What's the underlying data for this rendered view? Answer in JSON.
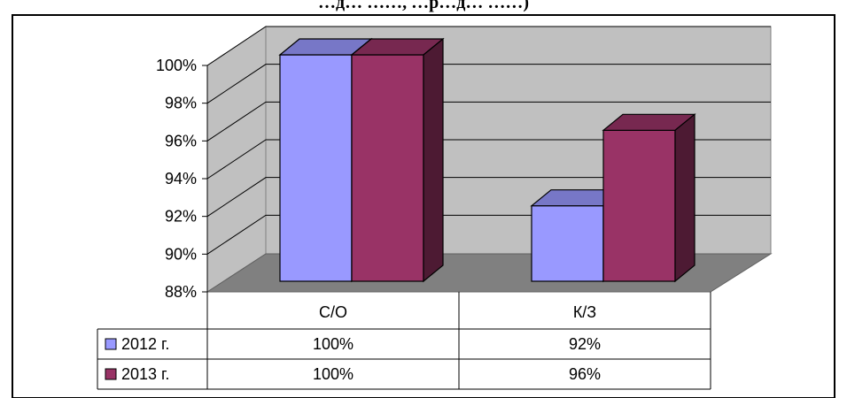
{
  "chart_data": {
    "type": "bar",
    "title": "…д… ……, …р…д… ……)",
    "categories": [
      "С/О",
      "К/З"
    ],
    "series": [
      {
        "name": "2012 г.",
        "values": [
          100,
          92
        ],
        "labels": [
          "100%",
          "92%"
        ],
        "color": "#9999FF"
      },
      {
        "name": "2013 г.",
        "values": [
          100,
          96
        ],
        "labels": [
          "100%",
          "96%"
        ],
        "color": "#993366"
      }
    ],
    "yticks": [
      "88%",
      "90%",
      "92%",
      "94%",
      "96%",
      "98%",
      "100%"
    ],
    "ylim": [
      88,
      100
    ],
    "grid": true,
    "legend": "data-table"
  }
}
